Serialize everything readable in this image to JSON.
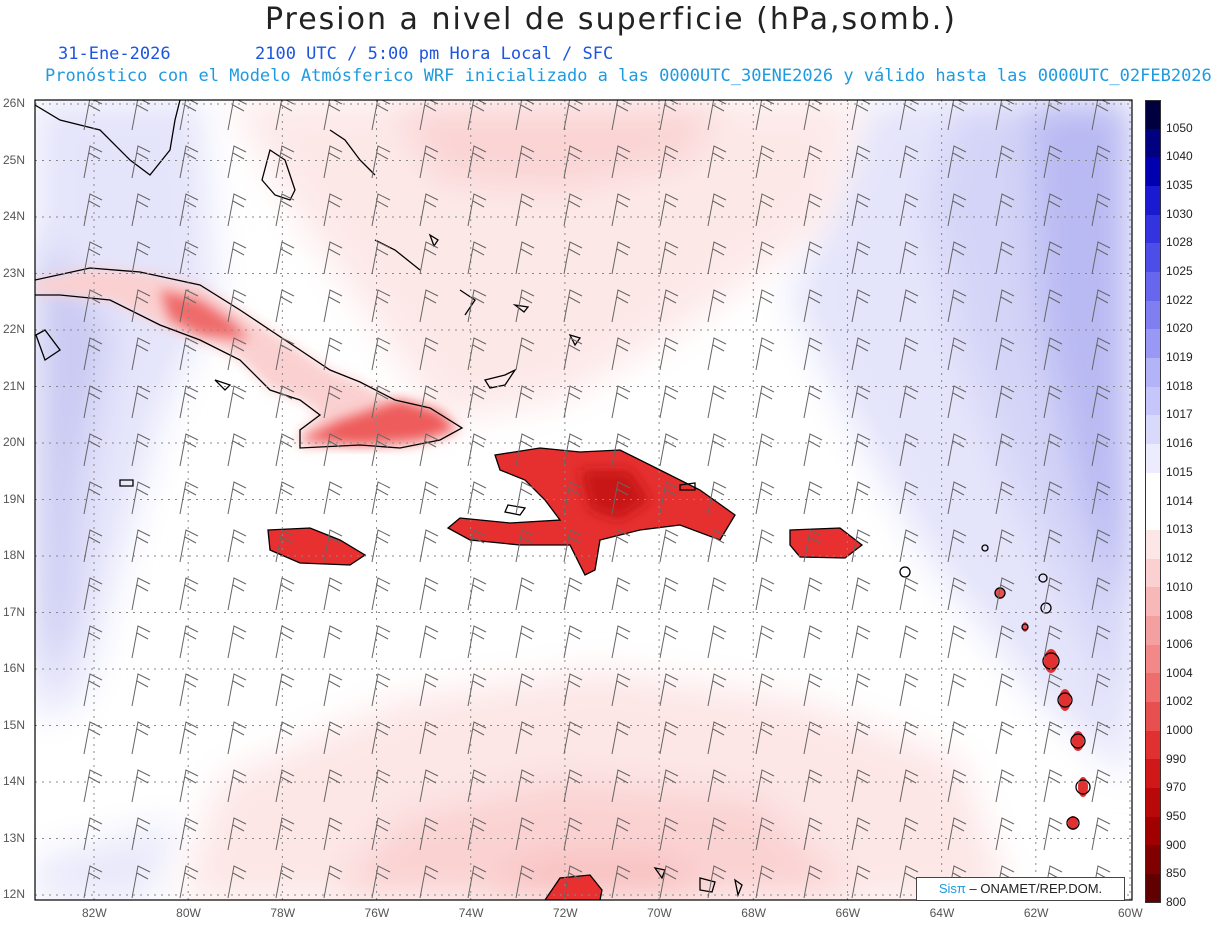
{
  "title": "Presion a nivel de superficie (hPa,somb.)",
  "date": "31-Ene-2026",
  "time_info": "2100 UTC / 5:00 pm Hora Local / SFC",
  "model_info": "Pronóstico con el Modelo Atmósferico WRF inicializado a las 0000UTC_30ENE2026 y válido hasta las  0000UTC_02FEB2026",
  "credit": {
    "logo": "Sisπ",
    "text": "– ONAMET/REP.DOM."
  },
  "lat_labels": [
    "26N",
    "25N",
    "24N",
    "23N",
    "22N",
    "21N",
    "20N",
    "19N",
    "18N",
    "17N",
    "16N",
    "15N",
    "14N",
    "13N",
    "12N"
  ],
  "lon_labels": [
    "82W",
    "80W",
    "78W",
    "76W",
    "74W",
    "72W",
    "70W",
    "68W",
    "66W",
    "64W",
    "62W",
    "60W"
  ],
  "colorbar": {
    "levels": [
      "1050",
      "1040",
      "1035",
      "1030",
      "1028",
      "1025",
      "1022",
      "1020",
      "1019",
      "1018",
      "1017",
      "1016",
      "1015",
      "1014",
      "1013",
      "1012",
      "1010",
      "1008",
      "1006",
      "1004",
      "1002",
      "1000",
      "990",
      "970",
      "950",
      "900",
      "850",
      "800"
    ],
    "colors": [
      "#000040",
      "#000080",
      "#0000b0",
      "#1a1ad0",
      "#3333e0",
      "#4d4de8",
      "#6666ee",
      "#7f7ff2",
      "#9999f5",
      "#b3b3f8",
      "#c6c6fa",
      "#d9d9fc",
      "#ececfe",
      "#ffffff",
      "#ffffff",
      "#fde6e6",
      "#fbd0d0",
      "#f8b8b8",
      "#f5a0a0",
      "#f28888",
      "#ee6e6e",
      "#e85050",
      "#e03030",
      "#d01818",
      "#b80808",
      "#a00000",
      "#800000",
      "#600000"
    ]
  },
  "colors": {
    "land_high": "#e83a3a",
    "low_pressure": "#fcdede",
    "high_pressure": "#c9c9f6"
  }
}
